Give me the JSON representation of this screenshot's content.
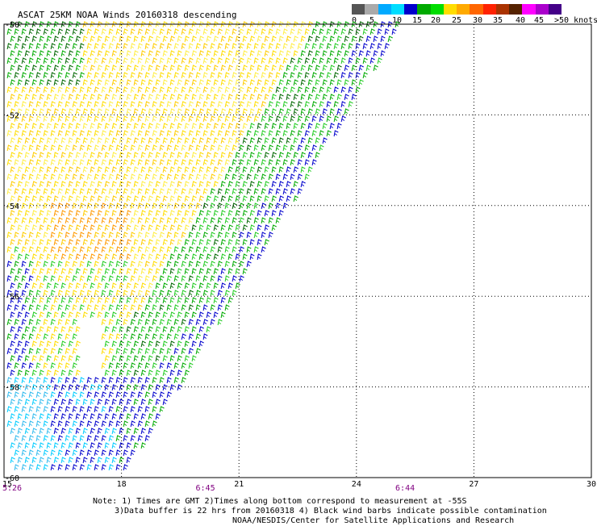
{
  "title": "ASCAT 25KM NOAA Winds 20160318 descending",
  "colorbar": {
    "colors": [
      "#555555",
      "#aaaaaa",
      "#00aaff",
      "#00ddff",
      "#0000cc",
      "#00aa00",
      "#00dd00",
      "#ffdd00",
      "#ffaa00",
      "#ff6600",
      "#ff2200",
      "#aa3300",
      "#552200",
      "#ff00ff",
      "#aa00cc",
      "#440088"
    ],
    "labels": [
      "0",
      "5",
      "10",
      "15",
      "20",
      "25",
      "30",
      "35",
      "40",
      "45",
      ">50 knots"
    ]
  },
  "axes": {
    "lat_labels": [
      "-50",
      "-52",
      "-54",
      "-56",
      "-58",
      "-60"
    ],
    "lon_labels": [
      "15",
      "18",
      "21",
      "24",
      "27",
      "30"
    ],
    "time_labels": [
      "5:26",
      "6:45",
      "6:44"
    ]
  },
  "notes": {
    "line1": "Note: 1) Times are GMT 2)Times along bottom correspond to measurement at -55S",
    "line2": "3)Data buffer is 22 hrs from 20160318 4) Black wind barbs indicate possible contamination",
    "line3": "NOAA/NESDIS/Center for Satellite Applications and Research"
  }
}
